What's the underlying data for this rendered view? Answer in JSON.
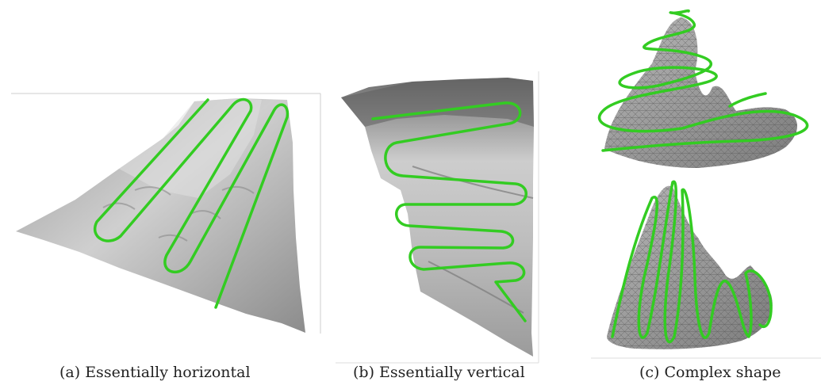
{
  "figure": {
    "panels": [
      {
        "caption": "(a) Essentially horizontal"
      },
      {
        "caption": "(b) Essentially vertical"
      },
      {
        "caption": "(c) Complex shape"
      }
    ],
    "colors": {
      "trajectory": "#33cc22",
      "terrain_light": "#d4d4d4",
      "terrain_dark": "#8a8a8a",
      "mesh_line": "#555555"
    }
  }
}
